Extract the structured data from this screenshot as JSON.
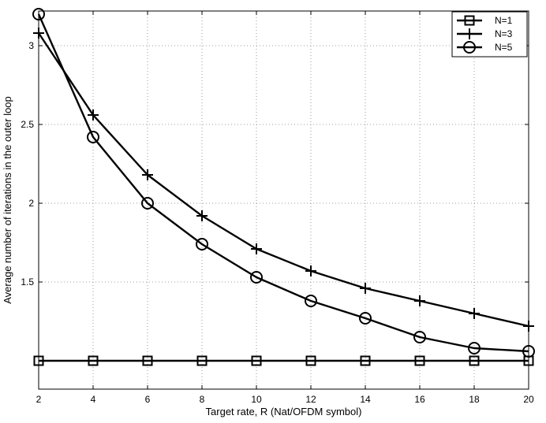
{
  "chart_data": {
    "type": "line",
    "title": "",
    "xlabel": "Target rate, R (Nat/OFDM symbol)",
    "ylabel": "Average number of iterations in the outer loop",
    "xlim": [
      2,
      20
    ],
    "ylim": [
      0.82,
      3.22
    ],
    "grid": true,
    "legend_position": "top-right",
    "x": [
      2,
      4,
      6,
      8,
      10,
      12,
      14,
      16,
      18,
      20
    ],
    "x_ticks": [
      2,
      4,
      6,
      8,
      10,
      12,
      14,
      16,
      18,
      20
    ],
    "x_tick_labels": [
      "2",
      "4",
      "6",
      "8",
      "10",
      "12",
      "14",
      "16",
      "18",
      "20"
    ],
    "y_ticks": [
      1.0,
      1.5,
      2.0,
      2.5,
      3.0
    ],
    "y_tick_labels": [
      "",
      "1.5",
      "2",
      "2.5",
      "3"
    ],
    "series": [
      {
        "name": "N=1",
        "marker": "square",
        "values": [
          1.0,
          1.0,
          1.0,
          1.0,
          1.0,
          1.0,
          1.0,
          1.0,
          1.0,
          1.0
        ]
      },
      {
        "name": "N=3",
        "marker": "plus",
        "values": [
          3.08,
          2.56,
          2.18,
          1.92,
          1.71,
          1.57,
          1.46,
          1.38,
          1.3,
          1.22
        ]
      },
      {
        "name": "N=5",
        "marker": "circle",
        "values": [
          3.2,
          2.42,
          2.0,
          1.74,
          1.53,
          1.38,
          1.27,
          1.15,
          1.08,
          1.06
        ]
      }
    ],
    "colors": {
      "line": "#000000",
      "grid": "#808080",
      "background": "#ffffff"
    }
  }
}
